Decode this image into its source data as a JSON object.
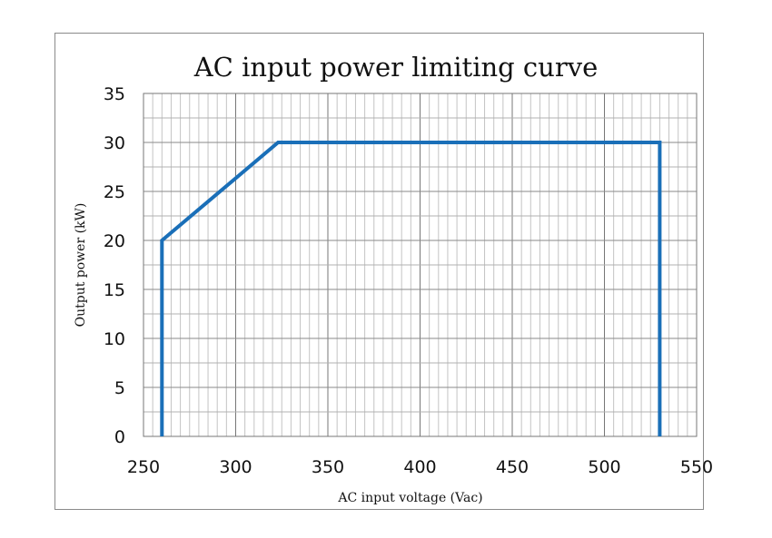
{
  "chart_data": {
    "type": "line",
    "title": "AC input power limiting curve",
    "xlabel": "AC input voltage (Vac)",
    "ylabel": "Output power (kW)",
    "xlim": [
      250,
      550
    ],
    "ylim": [
      0,
      35
    ],
    "xticks": [
      250,
      300,
      350,
      400,
      450,
      500,
      550
    ],
    "yticks": [
      0,
      5,
      10,
      15,
      20,
      25,
      30,
      35
    ],
    "x_minor_step": 5,
    "y_minor_step": 2.5,
    "grid": true,
    "series": [
      {
        "color": "#1a6fb8",
        "points": [
          [
            260,
            0
          ],
          [
            260,
            20
          ],
          [
            323,
            30
          ],
          [
            530,
            30
          ],
          [
            530,
            0
          ]
        ]
      }
    ]
  }
}
